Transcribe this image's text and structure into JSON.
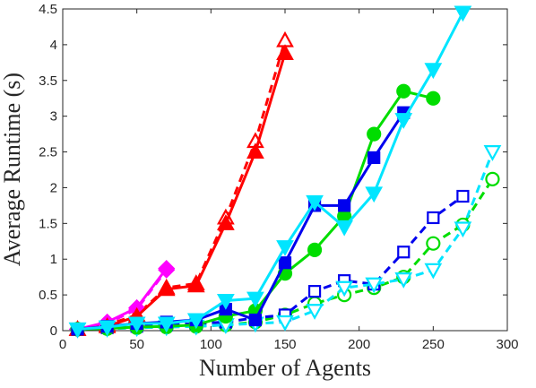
{
  "chart_data": {
    "type": "line",
    "xlabel": "Number of Agents",
    "ylabel": "Average Runtime (s)",
    "xlim": [
      0,
      300
    ],
    "ylim": [
      0,
      4.5
    ],
    "xticks": [
      0,
      50,
      100,
      150,
      200,
      250,
      300
    ],
    "yticks": [
      0,
      0.5,
      1,
      1.5,
      2,
      2.5,
      3,
      3.5,
      4,
      4.5
    ],
    "grid": false,
    "series": [
      {
        "color": "#ff00ff",
        "marker": "diamond",
        "filled": true,
        "dash": false,
        "x": [
          10,
          30,
          50,
          70
        ],
        "y": [
          0.02,
          0.12,
          0.32,
          0.87
        ]
      },
      {
        "color": "#ff00ff",
        "marker": "diamond",
        "filled": false,
        "dash": true,
        "x": [
          10,
          30,
          50,
          70
        ],
        "y": [
          0.02,
          0.1,
          0.3,
          0.85
        ]
      },
      {
        "color": "#ff0000",
        "marker": "triangle-up",
        "filled": true,
        "dash": false,
        "x": [
          10,
          30,
          50,
          70,
          90,
          110,
          130,
          150
        ],
        "y": [
          0.02,
          0.06,
          0.2,
          0.58,
          0.63,
          1.5,
          2.5,
          3.88
        ]
      },
      {
        "color": "#ff0000",
        "marker": "triangle-up",
        "filled": false,
        "dash": true,
        "x": [
          10,
          30,
          50,
          70,
          90,
          110,
          130,
          150
        ],
        "y": [
          0.02,
          0.08,
          0.22,
          0.6,
          0.66,
          1.58,
          2.65,
          4.06
        ]
      },
      {
        "color": "#00dd00",
        "marker": "circle",
        "filled": true,
        "dash": false,
        "x": [
          10,
          30,
          50,
          70,
          90,
          110,
          130,
          150,
          170,
          190,
          210,
          230,
          250
        ],
        "y": [
          0.02,
          0.03,
          0.05,
          0.06,
          0.08,
          0.2,
          0.28,
          0.8,
          1.13,
          1.6,
          2.75,
          3.35,
          3.25
        ]
      },
      {
        "color": "#00dd00",
        "marker": "circle",
        "filled": false,
        "dash": true,
        "x": [
          10,
          30,
          50,
          70,
          90,
          110,
          130,
          150,
          170,
          190,
          210,
          230,
          250,
          270,
          290
        ],
        "y": [
          0.02,
          0.03,
          0.04,
          0.05,
          0.06,
          0.08,
          0.12,
          0.22,
          0.38,
          0.5,
          0.6,
          0.75,
          1.22,
          1.48,
          2.12
        ]
      },
      {
        "color": "#0000ee",
        "marker": "square",
        "filled": true,
        "dash": false,
        "x": [
          10,
          30,
          50,
          70,
          90,
          110,
          130,
          150,
          170,
          190,
          210,
          230
        ],
        "y": [
          0.02,
          0.06,
          0.1,
          0.12,
          0.15,
          0.3,
          0.15,
          0.95,
          1.75,
          1.75,
          2.42,
          3.05
        ]
      },
      {
        "color": "#0000ee",
        "marker": "square",
        "filled": false,
        "dash": true,
        "x": [
          10,
          30,
          50,
          70,
          90,
          110,
          130,
          150,
          170,
          190,
          210,
          230,
          250,
          270
        ],
        "y": [
          0.02,
          0.04,
          0.06,
          0.08,
          0.1,
          0.12,
          0.18,
          0.22,
          0.55,
          0.7,
          0.65,
          1.1,
          1.58,
          1.88
        ]
      },
      {
        "color": "#00e5ff",
        "marker": "triangle-down",
        "filled": true,
        "dash": false,
        "x": [
          10,
          30,
          50,
          70,
          90,
          110,
          130,
          150,
          170,
          190,
          210,
          230,
          250,
          270
        ],
        "y": [
          0.02,
          0.05,
          0.1,
          0.1,
          0.15,
          0.42,
          0.45,
          1.17,
          1.8,
          1.45,
          1.92,
          2.95,
          3.65,
          4.45
        ]
      },
      {
        "color": "#00e5ff",
        "marker": "triangle-down",
        "filled": false,
        "dash": true,
        "x": [
          10,
          30,
          50,
          70,
          90,
          110,
          130,
          150,
          170,
          190,
          210,
          230,
          250,
          270,
          290
        ],
        "y": [
          0.02,
          0.03,
          0.04,
          0.05,
          0.06,
          0.08,
          0.1,
          0.12,
          0.28,
          0.6,
          0.65,
          0.72,
          0.85,
          1.43,
          2.5
        ]
      }
    ]
  }
}
